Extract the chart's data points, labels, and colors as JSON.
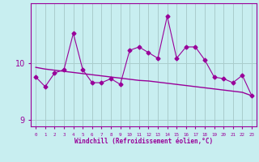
{
  "xlabel": "Windchill (Refroidissement éolien,°C)",
  "bg_color": "#c8eef0",
  "line_color": "#990099",
  "grid_color": "#aacccc",
  "x": [
    0,
    1,
    2,
    3,
    4,
    5,
    6,
    7,
    8,
    9,
    10,
    11,
    12,
    13,
    14,
    15,
    16,
    17,
    18,
    19,
    20,
    21,
    22,
    23
  ],
  "y_noisy": [
    9.75,
    9.58,
    9.82,
    9.88,
    10.52,
    9.88,
    9.65,
    9.65,
    9.72,
    9.62,
    10.22,
    10.28,
    10.18,
    10.08,
    10.82,
    10.08,
    10.28,
    10.28,
    10.05,
    9.75,
    9.72,
    9.65,
    9.78,
    9.42
  ],
  "y_smooth": [
    9.92,
    9.89,
    9.87,
    9.85,
    9.83,
    9.81,
    9.79,
    9.77,
    9.75,
    9.73,
    9.71,
    9.69,
    9.68,
    9.66,
    9.64,
    9.62,
    9.6,
    9.58,
    9.56,
    9.54,
    9.52,
    9.5,
    9.48,
    9.42
  ],
  "ylim": [
    8.88,
    11.05
  ],
  "xlim": [
    -0.5,
    23.5
  ],
  "yticks": [
    9,
    10
  ],
  "xticks": [
    0,
    1,
    2,
    3,
    4,
    5,
    6,
    7,
    8,
    9,
    10,
    11,
    12,
    13,
    14,
    15,
    16,
    17,
    18,
    19,
    20,
    21,
    22,
    23
  ]
}
